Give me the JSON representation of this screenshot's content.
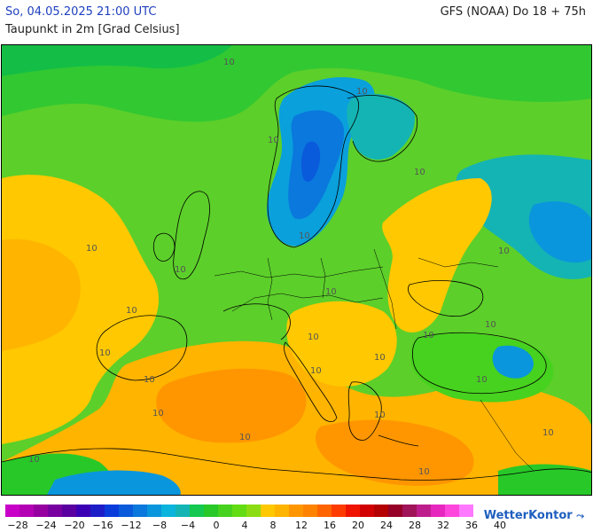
{
  "header": {
    "timestamp": "So, 04.05.2025 21:00 UTC",
    "model_run": "GFS (NOAA) Do 18 + 75h",
    "parameter": "Taupunkt in 2m [Grad Celsius]"
  },
  "map": {
    "contour_labels": [
      "10",
      "10",
      "10",
      "10",
      "10",
      "10",
      "10",
      "10",
      "10",
      "10",
      "10",
      "10",
      "10",
      "10",
      "10",
      "10",
      "10",
      "10",
      "10",
      "10",
      "10",
      "10",
      "10",
      "10"
    ]
  },
  "legend": {
    "colors": [
      "#c800c8",
      "#b400b4",
      "#9600a0",
      "#7800a0",
      "#5a00a0",
      "#3c00b4",
      "#1e1ec8",
      "#0a3cdc",
      "#0a5adc",
      "#0a78dc",
      "#0a96dc",
      "#0ab4dc",
      "#14b4b4",
      "#14c850",
      "#28c828",
      "#46d21e",
      "#64dc14",
      "#8cdc14",
      "#ffc800",
      "#ffb400",
      "#ff9600",
      "#ff8200",
      "#ff6400",
      "#ff3c00",
      "#f01400",
      "#d20000",
      "#b40000",
      "#960028",
      "#a0145a",
      "#be1e8c",
      "#e628be",
      "#ff46dc",
      "#ff78ff"
    ],
    "ticks": [
      "−28",
      "−24",
      "−20",
      "−16",
      "−12",
      "−8",
      "−4",
      "0",
      "4",
      "8",
      "12",
      "16",
      "20",
      "24",
      "28",
      "32",
      "36",
      "40"
    ]
  },
  "logo": {
    "text": "WetterKontor"
  }
}
